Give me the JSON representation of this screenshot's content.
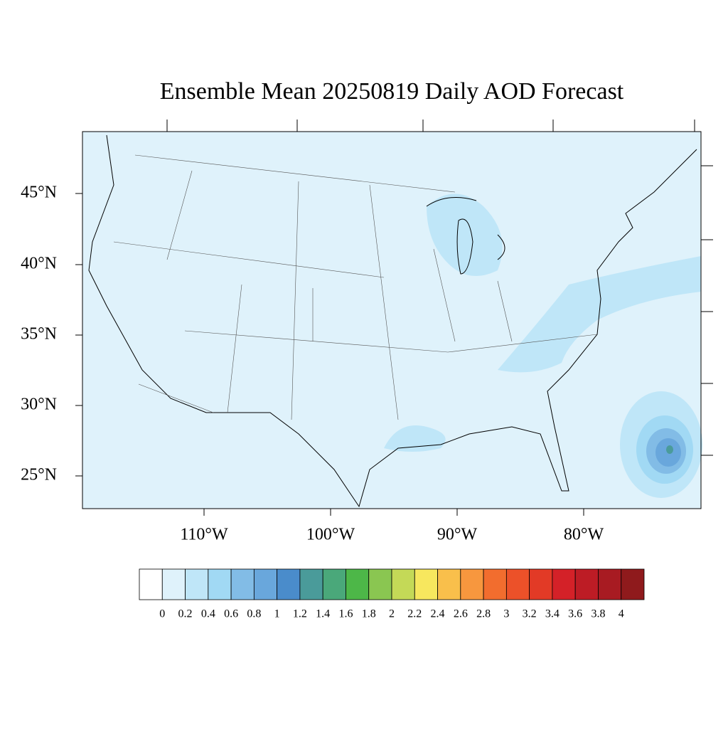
{
  "title": "Ensemble Mean 20250819 Daily AOD Forecast",
  "map": {
    "lat_labels": [
      "45°N",
      "40°N",
      "35°N",
      "30°N",
      "25°N"
    ],
    "lon_labels": [
      "110°W",
      "100°W",
      "90°W",
      "80°W"
    ]
  },
  "colorbar": {
    "levels": [
      0,
      0.2,
      0.4,
      0.6,
      0.8,
      1,
      1.2,
      1.4,
      1.6,
      1.8,
      2,
      2.2,
      2.4,
      2.6,
      2.8,
      3,
      3.2,
      3.4,
      3.6,
      3.8,
      4
    ],
    "colors": [
      "#ffffff",
      "#dff2fb",
      "#bfe6f8",
      "#a1d9f4",
      "#82bce6",
      "#69a7dc",
      "#4a8ccb",
      "#4a9b9a",
      "#4aa87a",
      "#4db748",
      "#8ac651",
      "#c4d957",
      "#f7e75e",
      "#f9bf4b",
      "#f7973e",
      "#f26d2e",
      "#ec5129",
      "#e23a26",
      "#d42128",
      "#bd1c25",
      "#a81b22",
      "#8f1a1c"
    ]
  }
}
